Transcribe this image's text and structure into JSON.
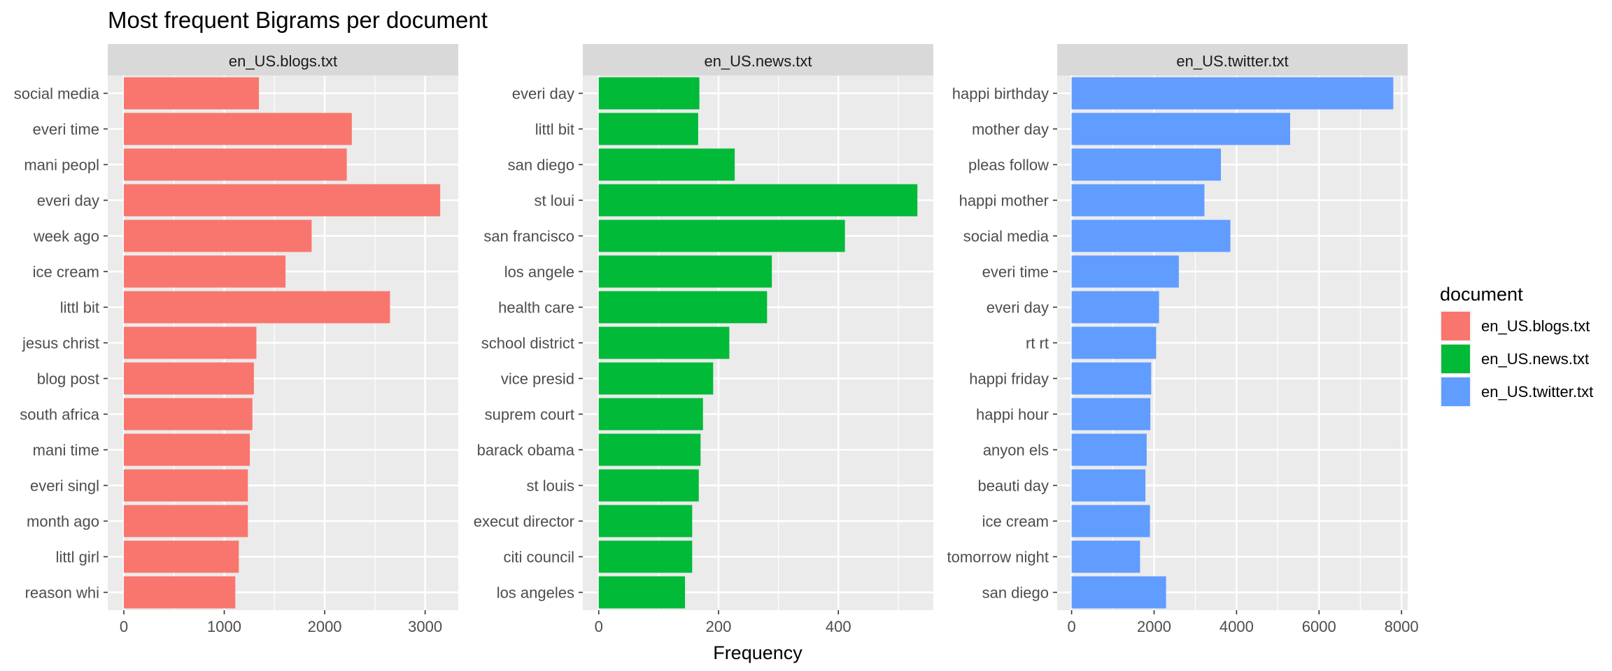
{
  "title": "Most frequent Bigrams per document",
  "xlabel": "Frequency",
  "legend": {
    "title": "document",
    "position": "right",
    "items": [
      {
        "label": "en_US.blogs.txt",
        "color": "#F8766D"
      },
      {
        "label": "en_US.news.txt",
        "color": "#00BA38"
      },
      {
        "label": "en_US.twitter.txt",
        "color": "#619CFF"
      }
    ]
  },
  "chart_data": [
    {
      "type": "bar",
      "orientation": "horizontal",
      "title": "en_US.blogs.txt",
      "color": "#F8766D",
      "categories": [
        "social media",
        "everi time",
        "mani peopl",
        "everi day",
        "week ago",
        "ice cream",
        "littl bit",
        "jesus christ",
        "blog post",
        "south africa",
        "mani time",
        "everi singl",
        "month ago",
        "littl girl",
        "reason whi"
      ],
      "values": [
        1345,
        2270,
        2220,
        3150,
        1870,
        1610,
        2650,
        1320,
        1295,
        1280,
        1255,
        1235,
        1235,
        1145,
        1110
      ],
      "xlim": [
        -160,
        3330
      ],
      "ticks": [
        0,
        1000,
        2000,
        3000
      ],
      "grid": true
    },
    {
      "type": "bar",
      "orientation": "horizontal",
      "title": "en_US.news.txt",
      "color": "#00BA38",
      "categories": [
        "everi day",
        "littl bit",
        "san diego",
        "st loui",
        "san francisco",
        "los angele",
        "health care",
        "school district",
        "vice presid",
        "suprem court",
        "barack obama",
        "st louis",
        "execut director",
        "citi council",
        "los angeles"
      ],
      "values": [
        168,
        166,
        227,
        532,
        411,
        289,
        281,
        218,
        191,
        174,
        170,
        167,
        156,
        156,
        144
      ],
      "xlim": [
        -26.6,
        558.6
      ],
      "ticks": [
        0,
        200,
        400
      ],
      "grid": true
    },
    {
      "type": "bar",
      "orientation": "horizontal",
      "title": "en_US.twitter.txt",
      "color": "#619CFF",
      "categories": [
        "happi birthday",
        "mother day",
        "pleas follow",
        "happi mother",
        "social media",
        "everi time",
        "everi day",
        "rt rt",
        "happi friday",
        "happi hour",
        "anyon els",
        "beauti day",
        "ice cream",
        "tomorrow night",
        "san diego"
      ],
      "values": [
        7800,
        5300,
        3620,
        3220,
        3850,
        2600,
        2120,
        2050,
        1930,
        1910,
        1820,
        1790,
        1900,
        1660,
        2290
      ],
      "xlim": [
        -350,
        8150
      ],
      "ticks": [
        0,
        2000,
        4000,
        6000,
        8000
      ],
      "grid": true
    }
  ]
}
